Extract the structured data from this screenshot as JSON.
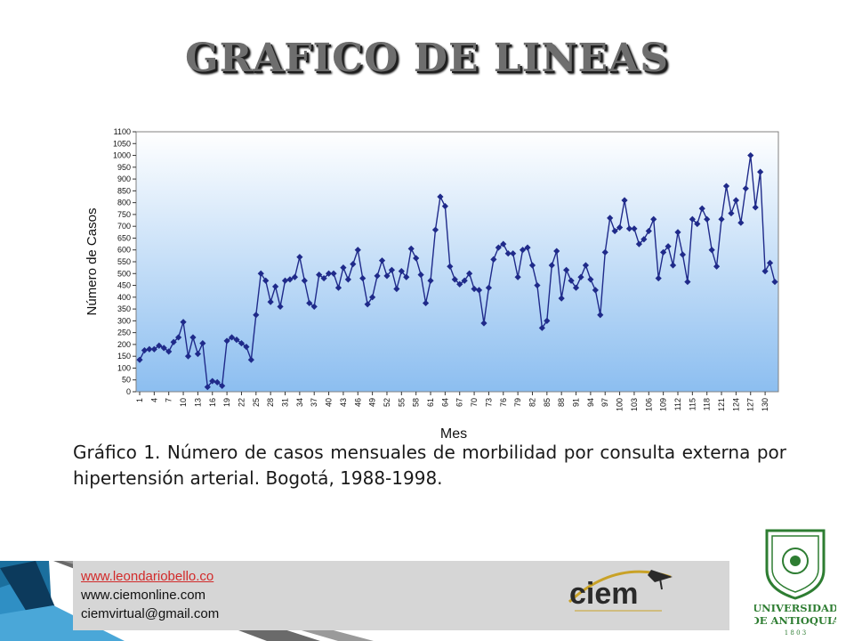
{
  "slide": {
    "title": "GRAFICO DE LINEAS",
    "caption": "Gráfico 1.  Número de casos mensuales de morbilidad por consulta externa por hipertensión arterial.  Bogotá, 1988-1998."
  },
  "footer": {
    "link": "www.leondariobello.co",
    "site": "www.ciemonline.com",
    "email": "ciemvirtual@gmail.com"
  },
  "logos": {
    "ciem": "ciem",
    "udea_line1": "UNIVERSIDAD",
    "udea_line2": "DE ANTIOQUIA",
    "udea_year": "1 8 0 3"
  },
  "chart_data": {
    "type": "line",
    "xlabel": "Mes",
    "ylabel": "Número de Casos",
    "ylim": [
      0,
      1100
    ],
    "ytick_step": 50,
    "x_ticks": [
      1,
      4,
      7,
      10,
      13,
      16,
      19,
      22,
      25,
      28,
      31,
      34,
      37,
      40,
      43,
      46,
      49,
      52,
      55,
      58,
      61,
      64,
      67,
      70,
      73,
      76,
      79,
      82,
      85,
      88,
      91,
      94,
      97,
      100,
      103,
      106,
      109,
      112,
      115,
      118,
      121,
      124,
      127,
      130
    ],
    "grid": false,
    "legend": "none",
    "colors": {
      "line": "#1f2a8a",
      "marker": "#1f2a8a",
      "bg_top": "#ffffff",
      "bg_bottom": "#8cbef0"
    },
    "values": [
      135,
      175,
      180,
      180,
      195,
      185,
      170,
      210,
      230,
      295,
      150,
      230,
      160,
      205,
      20,
      45,
      40,
      25,
      215,
      230,
      220,
      205,
      190,
      135,
      325,
      500,
      470,
      380,
      445,
      360,
      470,
      475,
      485,
      570,
      470,
      375,
      360,
      495,
      480,
      500,
      500,
      440,
      525,
      475,
      540,
      600,
      480,
      370,
      400,
      490,
      555,
      490,
      515,
      435,
      510,
      485,
      605,
      565,
      495,
      375,
      470,
      685,
      825,
      785,
      530,
      475,
      455,
      470,
      500,
      435,
      430,
      290,
      440,
      560,
      610,
      625,
      585,
      585,
      485,
      600,
      610,
      535,
      450,
      270,
      300,
      535,
      595,
      395,
      515,
      470,
      440,
      485,
      535,
      475,
      430,
      325,
      590,
      735,
      680,
      695,
      810,
      690,
      690,
      625,
      645,
      680,
      730,
      480,
      590,
      615,
      535,
      675,
      580,
      465,
      730,
      710,
      775,
      730,
      600,
      530,
      730,
      870,
      755,
      810,
      715,
      860,
      1000,
      780,
      930,
      510,
      545,
      465
    ]
  }
}
